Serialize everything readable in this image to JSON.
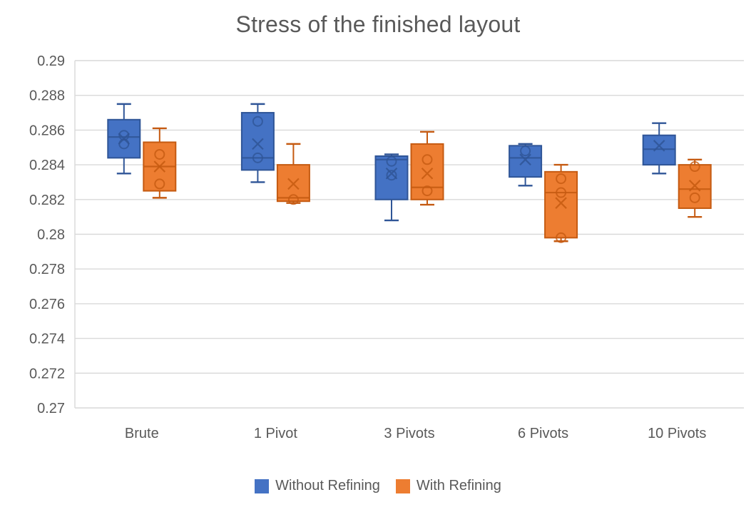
{
  "chart_data": {
    "type": "boxplot",
    "title": "Stress of the finished layout",
    "categories": [
      "Brute",
      "1 Pivot",
      "3 Pivots",
      "6 Pivots",
      "10 Pivots"
    ],
    "xlabel": "",
    "ylabel": "",
    "grid": true,
    "legend_position": "bottom",
    "y_axis": {
      "min": 0.27,
      "max": 0.29,
      "tick_step": 0.002,
      "tick_labels": [
        "0.27",
        "0.272",
        "0.274",
        "0.276",
        "0.278",
        "0.28",
        "0.282",
        "0.284",
        "0.286",
        "0.288",
        "0.29"
      ]
    },
    "colors": {
      "background": "#FFFFFF",
      "grid": "#D9D9D9",
      "axis_line": "#D9D9D9",
      "text": "#595959",
      "title_text": "#595959",
      "series_blue_fill": "#4472C4",
      "series_blue_stroke": "#2F5597",
      "series_orange_fill": "#ED7D31",
      "series_orange_stroke": "#C55A11"
    },
    "legend": [
      {
        "label": "Without Refining",
        "color": "#4472C4"
      },
      {
        "label": "With Refining",
        "color": "#ED7D31"
      }
    ],
    "series": [
      {
        "name": "Without Refining",
        "fill": "#4472C4",
        "stroke": "#2F5597",
        "boxes": [
          {
            "category": "Brute",
            "whisker_low": 0.2835,
            "q1": 0.2844,
            "median": 0.2856,
            "q3": 0.2866,
            "whisker_high": 0.2875,
            "mean": 0.2855,
            "outliers": [
              0.2857,
              0.2852
            ]
          },
          {
            "category": "1 Pivot",
            "whisker_low": 0.283,
            "q1": 0.2837,
            "median": 0.2844,
            "q3": 0.287,
            "whisker_high": 0.2875,
            "mean": 0.2852,
            "outliers": [
              0.2865,
              0.2844
            ]
          },
          {
            "category": "3 Pivots",
            "whisker_low": 0.2808,
            "q1": 0.282,
            "median": 0.2843,
            "q3": 0.2845,
            "whisker_high": 0.2846,
            "mean": 0.2835,
            "outliers": [
              0.2842,
              0.2834
            ]
          },
          {
            "category": "6 Pivots",
            "whisker_low": 0.2828,
            "q1": 0.2833,
            "median": 0.2844,
            "q3": 0.2851,
            "whisker_high": 0.2852,
            "mean": 0.2843,
            "outliers": [
              0.2848
            ]
          },
          {
            "category": "10 Pivots",
            "whisker_low": 0.2835,
            "q1": 0.284,
            "median": 0.2849,
            "q3": 0.2857,
            "whisker_high": 0.2864,
            "mean": 0.2851,
            "outliers": []
          }
        ]
      },
      {
        "name": "With Refining",
        "fill": "#ED7D31",
        "stroke": "#C55A11",
        "boxes": [
          {
            "category": "Brute",
            "whisker_low": 0.2821,
            "q1": 0.2825,
            "median": 0.2839,
            "q3": 0.2853,
            "whisker_high": 0.2861,
            "mean": 0.2839,
            "outliers": [
              0.2846,
              0.2829
            ]
          },
          {
            "category": "1 Pivot",
            "whisker_low": 0.2818,
            "q1": 0.2819,
            "median": 0.2821,
            "q3": 0.284,
            "whisker_high": 0.2852,
            "mean": 0.2829,
            "outliers": [
              0.282
            ]
          },
          {
            "category": "3 Pivots",
            "whisker_low": 0.2817,
            "q1": 0.282,
            "median": 0.2827,
            "q3": 0.2852,
            "whisker_high": 0.2859,
            "mean": 0.2835,
            "outliers": [
              0.2843,
              0.2825
            ]
          },
          {
            "category": "6 Pivots",
            "whisker_low": 0.2796,
            "q1": 0.2798,
            "median": 0.2824,
            "q3": 0.2836,
            "whisker_high": 0.284,
            "mean": 0.2818,
            "outliers": [
              0.2832,
              0.2824,
              0.2798
            ]
          },
          {
            "category": "10 Pivots",
            "whisker_low": 0.281,
            "q1": 0.2815,
            "median": 0.2826,
            "q3": 0.284,
            "whisker_high": 0.2843,
            "mean": 0.2828,
            "outliers": [
              0.2839,
              0.2821
            ]
          }
        ]
      }
    ]
  }
}
